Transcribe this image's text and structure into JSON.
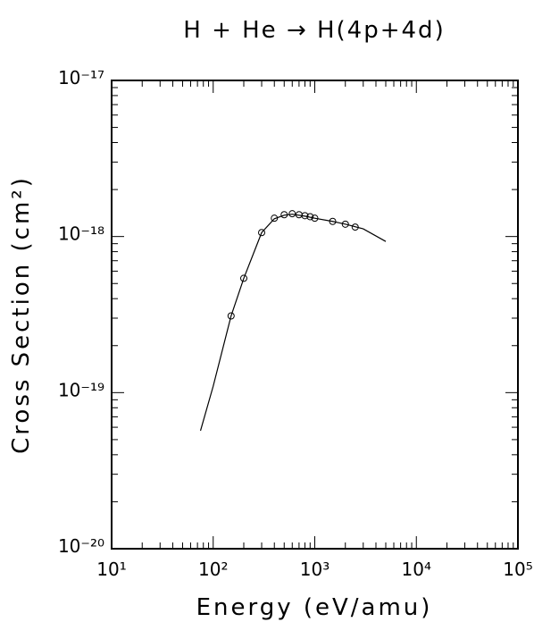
{
  "chart_data": {
    "type": "line",
    "title": "H + He → H(4p+4d)",
    "x_label": "Energy (eV/amu)",
    "y_label": "Cross Section (cm²)",
    "xscale": "log",
    "yscale": "log",
    "xlim": [
      10,
      100000
    ],
    "ylim": [
      1e-20,
      1e-17
    ],
    "xticks": [
      {
        "value": 10,
        "label": "10¹"
      },
      {
        "value": 100,
        "label": "10²"
      },
      {
        "value": 1000,
        "label": "10³"
      },
      {
        "value": 10000,
        "label": "10⁴"
      },
      {
        "value": 100000,
        "label": "10⁵"
      }
    ],
    "yticks": [
      {
        "value": 1e-20,
        "label": "10⁻²⁰"
      },
      {
        "value": 1e-19,
        "label": "10⁻¹⁹"
      },
      {
        "value": 1e-18,
        "label": "10⁻¹⁸"
      },
      {
        "value": 1e-17,
        "label": "10⁻¹⁷"
      }
    ],
    "color": "#000000",
    "series": [
      {
        "style": "markers",
        "x": [
          150,
          200,
          300,
          400,
          500,
          600,
          700,
          800,
          900,
          1000,
          1500,
          2000,
          2500
        ],
        "values": [
          3.1e-19,
          5.4e-19,
          1.06e-18,
          1.31e-18,
          1.38e-18,
          1.4e-18,
          1.38e-18,
          1.36e-18,
          1.34e-18,
          1.31e-18,
          1.25e-18,
          1.2e-18,
          1.15e-18
        ]
      },
      {
        "style": "line",
        "x": [
          75,
          100,
          150,
          200,
          300,
          400,
          500,
          600,
          800,
          1000,
          1500,
          2000,
          3000,
          5000
        ],
        "values": [
          5.7e-20,
          1.1e-19,
          3.1e-19,
          5.4e-19,
          1.06e-18,
          1.3e-18,
          1.37e-18,
          1.39e-18,
          1.35e-18,
          1.31e-18,
          1.25e-18,
          1.2e-18,
          1.12e-18,
          9.3e-19
        ]
      }
    ]
  }
}
